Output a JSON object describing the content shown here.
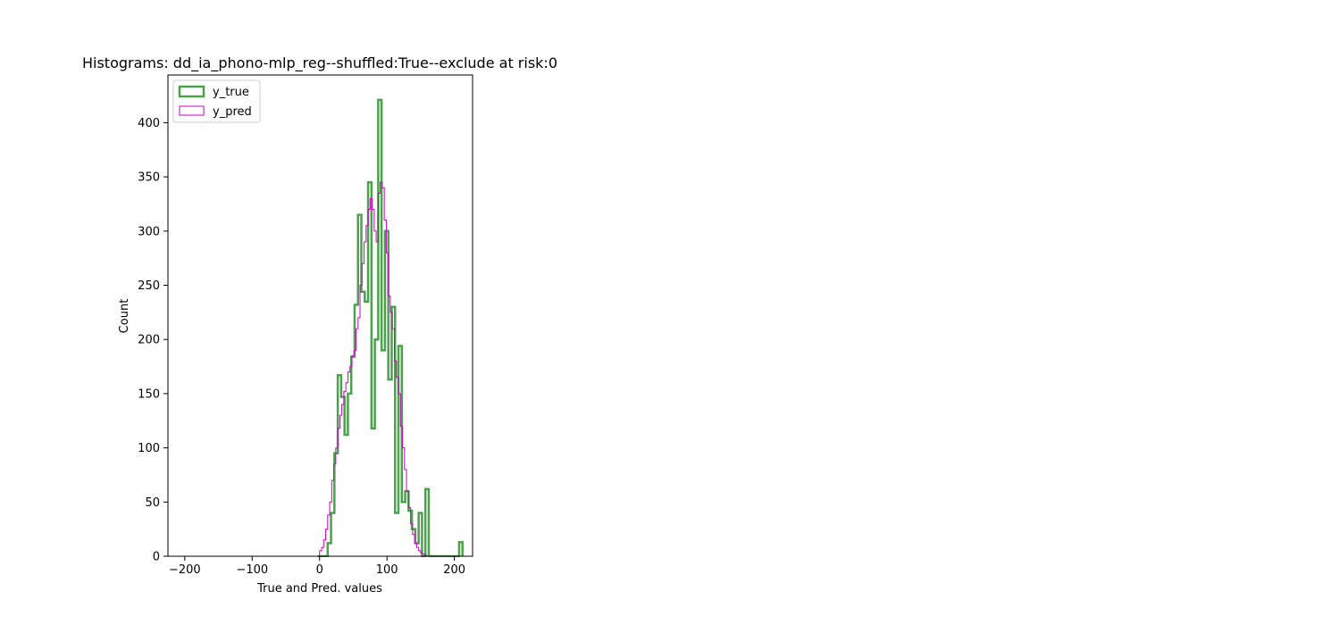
{
  "chart_data": {
    "type": "histogram",
    "title": "Histograms: dd_ia_phono-mlp_reg--shuffled:True--exclude at risk:0",
    "xlabel": "True and Pred. values",
    "ylabel": "Count",
    "xlim": [
      -225,
      227
    ],
    "ylim": [
      0,
      444
    ],
    "xticks": [
      -200,
      -100,
      0,
      100,
      200
    ],
    "yticks": [
      0,
      50,
      100,
      150,
      200,
      250,
      300,
      350,
      400
    ],
    "legend_position": "upper left",
    "series": [
      {
        "name": "y_true",
        "style": "step",
        "color": "#4ca24c",
        "bin_edges": [
          -3,
          2,
          7,
          12,
          17,
          22,
          27,
          32,
          37,
          42,
          47,
          52,
          57,
          62,
          67,
          72,
          77,
          82,
          87,
          92,
          97,
          102,
          107,
          112,
          117,
          122,
          127,
          132,
          137,
          142,
          147,
          152,
          157,
          162,
          167,
          172,
          177,
          182,
          187,
          192,
          197,
          202,
          207,
          212
        ],
        "counts": [
          0,
          0,
          0,
          12,
          40,
          95,
          167,
          147,
          112,
          150,
          184,
          232,
          315,
          244,
          235,
          345,
          118,
          200,
          421,
          190,
          300,
          163,
          230,
          40,
          194,
          50,
          60,
          42,
          25,
          12,
          40,
          0,
          62,
          0,
          0,
          0,
          0,
          0,
          0,
          0,
          0,
          0,
          13
        ]
      },
      {
        "name": "y_pred",
        "style": "step",
        "color": "#cc00cc",
        "bin_edges": [
          0,
          3,
          6,
          9,
          12,
          15,
          18,
          21,
          24,
          27,
          30,
          33,
          36,
          39,
          42,
          45,
          48,
          51,
          54,
          57,
          60,
          63,
          66,
          69,
          72,
          75,
          78,
          81,
          84,
          87,
          90,
          93,
          96,
          99,
          102,
          105,
          108,
          111,
          114,
          117,
          120,
          123,
          126,
          129,
          132,
          135,
          138,
          141,
          144,
          147,
          150,
          153,
          156,
          159,
          162,
          165,
          168
        ],
        "counts": [
          5,
          8,
          15,
          25,
          38,
          50,
          70,
          85,
          100,
          118,
          130,
          140,
          152,
          160,
          170,
          175,
          185,
          190,
          210,
          220,
          250,
          270,
          290,
          305,
          320,
          330,
          320,
          300,
          290,
          335,
          345,
          340,
          310,
          280,
          240,
          225,
          210,
          180,
          165,
          150,
          120,
          100,
          80,
          60,
          45,
          30,
          20,
          12,
          8,
          5,
          3,
          2,
          1,
          0,
          0,
          0
        ]
      }
    ]
  }
}
